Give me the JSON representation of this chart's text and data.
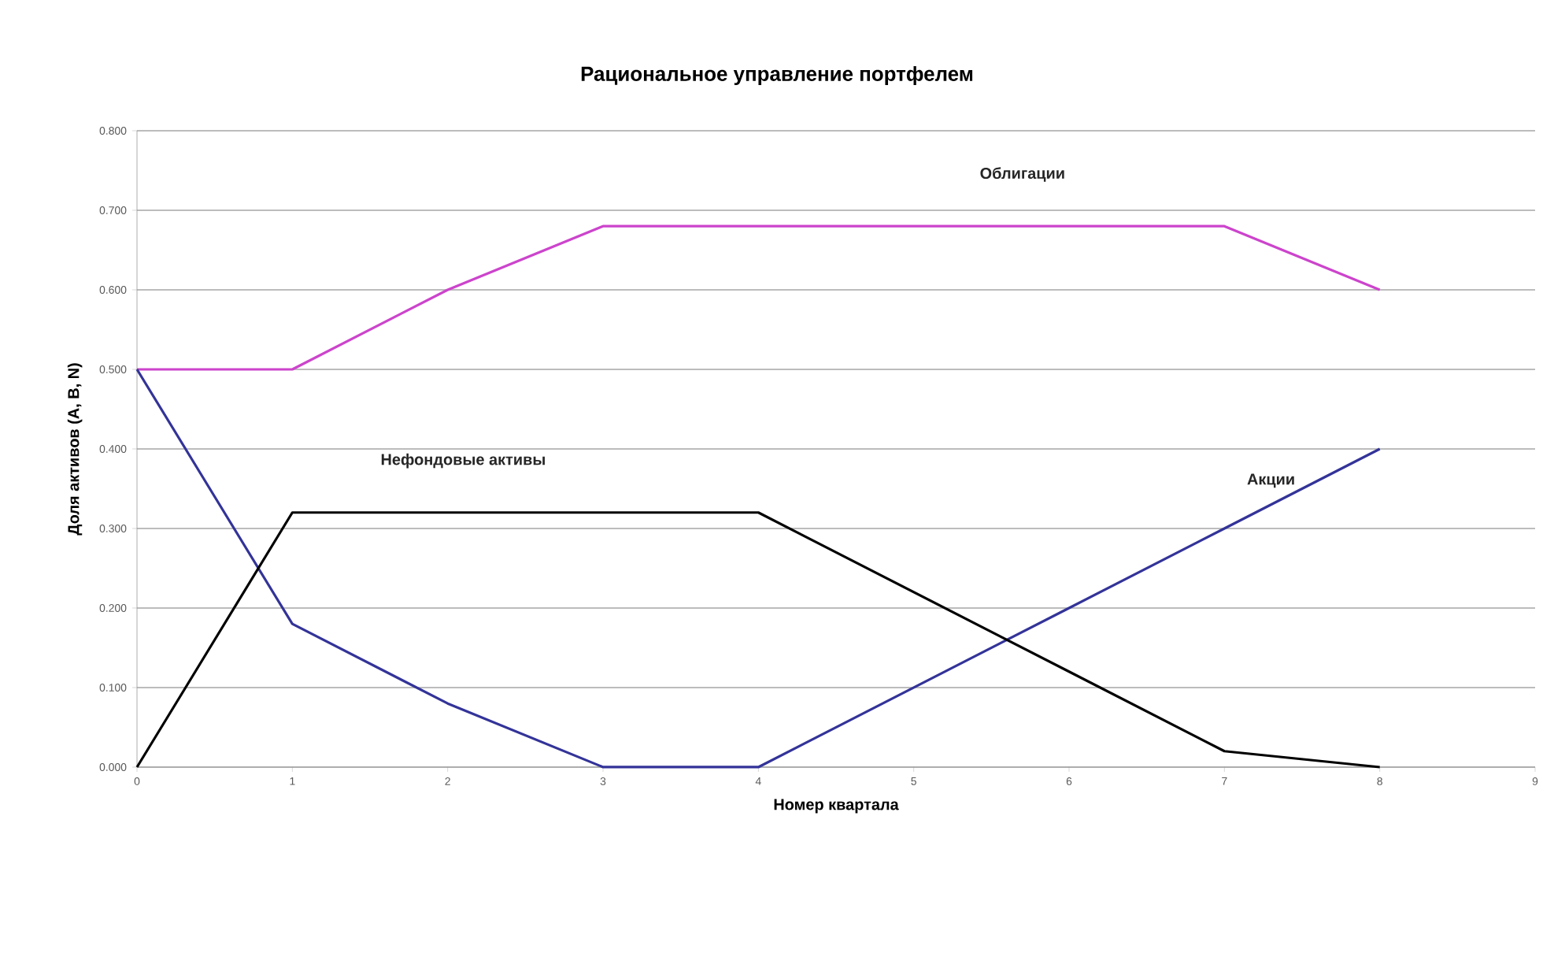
{
  "chart_data": {
    "type": "line",
    "title": "Рациональное управление портфелем",
    "xlabel": "Номер квартала",
    "ylabel": "Доля активов (A, B, N)",
    "x": [
      0,
      1,
      2,
      3,
      4,
      5,
      6,
      7,
      8
    ],
    "series": [
      {
        "name": "Облигации",
        "color": "#cc44cc",
        "values": [
          0.5,
          0.5,
          0.6,
          0.68,
          0.68,
          0.68,
          0.68,
          0.68,
          0.6
        ]
      },
      {
        "name": "Акции",
        "color": "#333399",
        "values": [
          0.5,
          0.18,
          0.08,
          0,
          0,
          0.1,
          0.2,
          0.3,
          0.4
        ]
      },
      {
        "name": "Нефондовые активы",
        "color": "#000000",
        "values": [
          0,
          0.32,
          0.32,
          0.32,
          0.32,
          0.22,
          0.12,
          0.02,
          0
        ]
      }
    ],
    "xlim": [
      0,
      9
    ],
    "xticks": [
      0,
      1,
      2,
      3,
      4,
      5,
      6,
      7,
      8,
      9
    ],
    "ylim": [
      0,
      0.8
    ],
    "yticks": [
      {
        "value": 0,
        "label": "0.000"
      },
      {
        "value": 0.1,
        "label": "0.100"
      },
      {
        "value": 0.2,
        "label": "0.200"
      },
      {
        "value": 0.3,
        "label": "0.300"
      },
      {
        "value": 0.4,
        "label": "0.400"
      },
      {
        "value": 0.5,
        "label": "0.500"
      },
      {
        "value": 0.6,
        "label": "0.600"
      },
      {
        "value": 0.7,
        "label": "0.700"
      },
      {
        "value": 0.8,
        "label": "0.800"
      }
    ],
    "grid": "y",
    "marker": "none",
    "line_style": "solid",
    "legend": false
  }
}
